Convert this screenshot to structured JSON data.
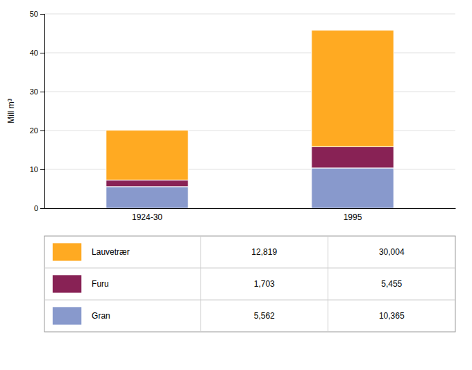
{
  "chart_data": {
    "type": "bar",
    "stacked": true,
    "categories": [
      "1924-30",
      "1995"
    ],
    "y_label": "Mill m³",
    "ylim": [
      0,
      50
    ],
    "yticks": [
      0,
      10,
      20,
      30,
      40,
      50
    ],
    "grid": true,
    "legend": "bottom",
    "series": [
      {
        "name": "Gran",
        "color": "#8899CC",
        "values": [
          5.562,
          10.365
        ],
        "value_labels": [
          "5,562",
          "10,365"
        ]
      },
      {
        "name": "Furu",
        "color": "#882255",
        "values": [
          1.703,
          5.455
        ],
        "value_labels": [
          "1,703",
          "5,455"
        ]
      },
      {
        "name": "Lauvetrær",
        "color": "#FFAA22",
        "values": [
          12.819,
          30.004
        ],
        "value_labels": [
          "12,819",
          "30,004"
        ]
      }
    ]
  }
}
